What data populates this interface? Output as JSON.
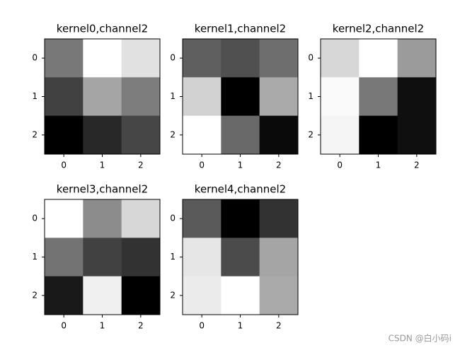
{
  "chart_data": [
    {
      "type": "heatmap",
      "title": "kernel0,channel2",
      "colormap": "gray",
      "vlim": [
        0,
        255
      ],
      "xticks": [
        0,
        1,
        2
      ],
      "yticks": [
        0,
        1,
        2
      ],
      "xlim": [
        -0.5,
        2.5
      ],
      "ylim": [
        2.5,
        -0.5
      ],
      "values": [
        [
          120,
          255,
          225
        ],
        [
          65,
          165,
          125
        ],
        [
          0,
          40,
          70
        ]
      ]
    },
    {
      "type": "heatmap",
      "title": "kernel1,channel2",
      "colormap": "gray",
      "vlim": [
        0,
        255
      ],
      "xticks": [
        0,
        1,
        2
      ],
      "yticks": [
        0,
        1,
        2
      ],
      "xlim": [
        -0.5,
        2.5
      ],
      "ylim": [
        2.5,
        -0.5
      ],
      "values": [
        [
          95,
          80,
          110
        ],
        [
          210,
          0,
          170
        ],
        [
          255,
          105,
          10
        ]
      ]
    },
    {
      "type": "heatmap",
      "title": "kernel2,channel2",
      "colormap": "gray",
      "vlim": [
        0,
        255
      ],
      "xticks": [
        0,
        1,
        2
      ],
      "yticks": [
        0,
        1,
        2
      ],
      "xlim": [
        -0.5,
        2.5
      ],
      "ylim": [
        2.5,
        -0.5
      ],
      "values": [
        [
          215,
          255,
          155
        ],
        [
          250,
          120,
          15
        ],
        [
          245,
          0,
          15
        ]
      ]
    },
    {
      "type": "heatmap",
      "title": "kernel3,channel2",
      "colormap": "gray",
      "vlim": [
        0,
        255
      ],
      "xticks": [
        0,
        1,
        2
      ],
      "yticks": [
        0,
        1,
        2
      ],
      "xlim": [
        -0.5,
        2.5
      ],
      "ylim": [
        2.5,
        -0.5
      ],
      "values": [
        [
          255,
          140,
          215
        ],
        [
          115,
          65,
          50
        ],
        [
          25,
          240,
          0
        ]
      ]
    },
    {
      "type": "heatmap",
      "title": "kernel4,channel2",
      "colormap": "gray",
      "vlim": [
        0,
        255
      ],
      "xticks": [
        0,
        1,
        2
      ],
      "yticks": [
        0,
        1,
        2
      ],
      "xlim": [
        -0.5,
        2.5
      ],
      "ylim": [
        2.5,
        -0.5
      ],
      "values": [
        [
          90,
          0,
          50
        ],
        [
          230,
          75,
          165
        ],
        [
          235,
          255,
          170
        ]
      ]
    }
  ],
  "watermark": "CSDN @白小码i"
}
